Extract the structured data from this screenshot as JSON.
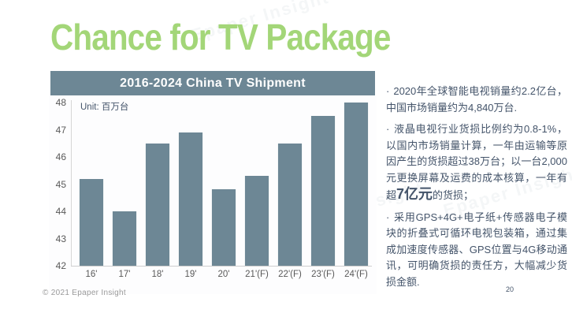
{
  "slide": {
    "title": "Chance for TV Package",
    "footer": "© 2021 Epaper Insight",
    "page_number": "20",
    "watermark_text": "Epaper Insight",
    "colors": {
      "title_green": "#a3d678",
      "slate": "#6d8795",
      "body_text": "#44546a",
      "axis_text": "#595959"
    }
  },
  "chart_data": {
    "type": "bar",
    "title": "2016-2024 China TV Shipment",
    "unit_label": "Unit: 百万台",
    "categories": [
      "16'",
      "17'",
      "18'",
      "19'",
      "20'",
      "21'(F)",
      "22'(F)",
      "23'(F)",
      "24'(F)"
    ],
    "values": [
      45.2,
      44.0,
      46.5,
      46.9,
      44.8,
      45.3,
      46.5,
      47.5,
      48.0
    ],
    "ylim": [
      42,
      48
    ],
    "yticks": [
      48,
      47,
      46,
      45,
      44,
      43,
      42
    ],
    "bar_color": "#6d8795",
    "grid": false,
    "legend_position": "none",
    "xlabel": "",
    "ylabel": "百万台 (million units)"
  },
  "panel": {
    "bullet_char": "·",
    "bullets": [
      {
        "segments": [
          {
            "text": "2020年全球智能电视销量约2.2亿台，中国市场销量约为4,840万台."
          }
        ]
      },
      {
        "segments": [
          {
            "text": "液晶电视行业货损比例约为0.8-1%，以国内市场销量计算，一年由运输等原因产生的货损超过38万台；以一台2,000元更换屏幕及运费的成本核算，一年有超"
          },
          {
            "text": "7亿元",
            "bold": true
          },
          {
            "text": "的货损；"
          }
        ]
      },
      {
        "segments": [
          {
            "text": "采用GPS+4G+电子纸+传感器电子模块的折叠式可循环电视包装箱，通过集成加速度传感器、GPS位置与4G移动通讯，可明确货损的责任方，大幅减少货损金额."
          }
        ]
      }
    ]
  }
}
